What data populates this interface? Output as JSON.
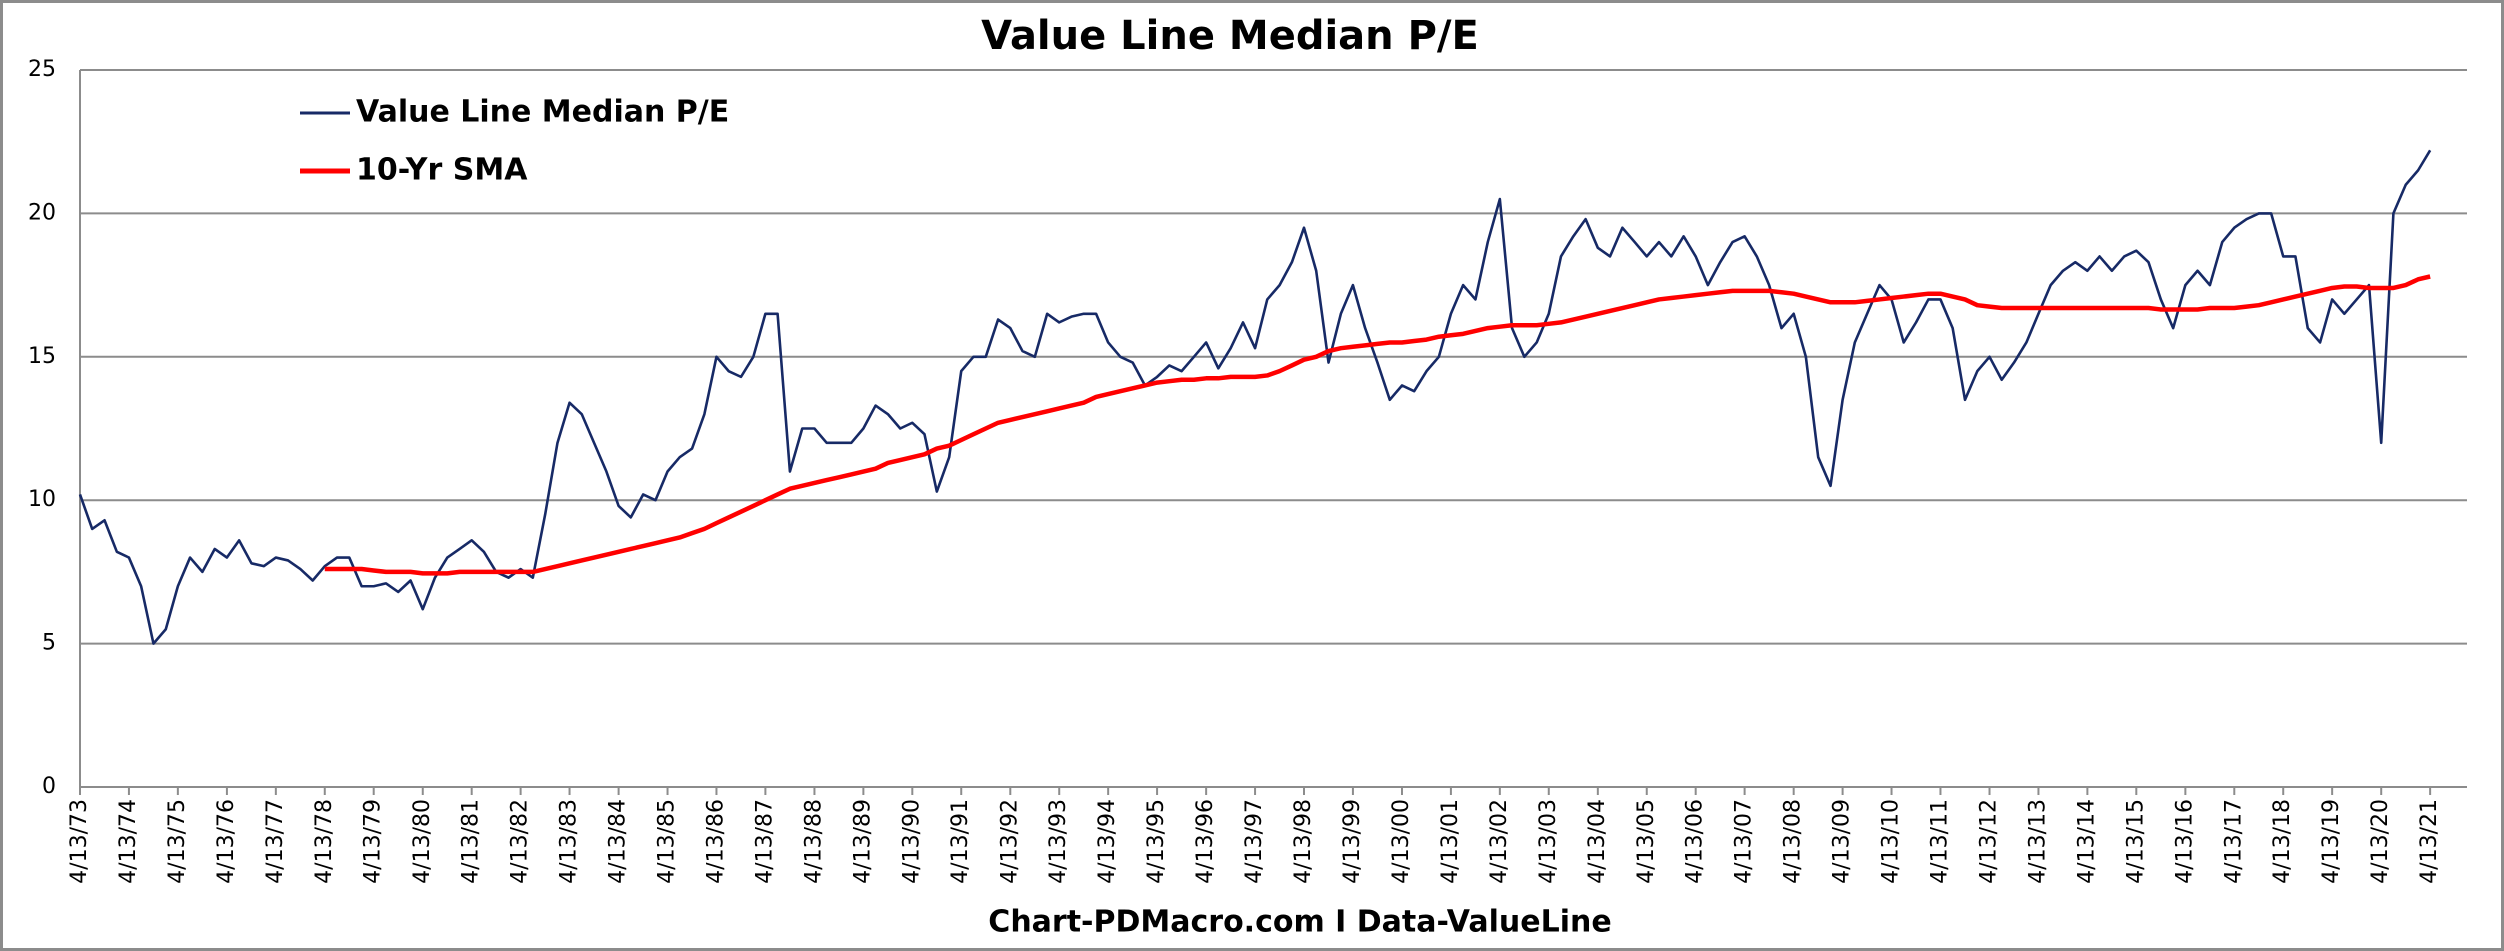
{
  "chart_data": {
    "type": "line",
    "title": "Value Line Median P/E",
    "x_label": "Chart-PDMacro.com I Data-ValueLine",
    "x": [
      "4/13/73",
      "7/13/73",
      "10/13/73",
      "1/13/74",
      "4/13/74",
      "7/13/74",
      "10/13/74",
      "1/13/75",
      "4/13/75",
      "7/13/75",
      "10/13/75",
      "1/13/76",
      "4/13/76",
      "7/13/76",
      "10/13/76",
      "1/13/77",
      "4/13/77",
      "7/13/77",
      "10/13/77",
      "1/13/78",
      "4/13/78",
      "7/13/78",
      "10/13/78",
      "1/13/79",
      "4/13/79",
      "7/13/79",
      "10/13/79",
      "1/13/80",
      "4/13/80",
      "7/13/80",
      "10/13/80",
      "1/13/81",
      "4/13/81",
      "7/13/81",
      "10/13/81",
      "1/13/82",
      "4/13/82",
      "7/13/82",
      "10/13/82",
      "1/13/83",
      "4/13/83",
      "7/13/83",
      "10/13/83",
      "1/13/84",
      "4/13/84",
      "7/13/84",
      "10/13/84",
      "1/13/85",
      "4/13/85",
      "7/13/85",
      "10/13/85",
      "1/13/86",
      "4/13/86",
      "7/13/86",
      "10/13/86",
      "1/13/87",
      "4/13/87",
      "7/13/87",
      "10/13/87",
      "1/13/88",
      "4/13/88",
      "7/13/88",
      "10/13/88",
      "1/13/89",
      "4/13/89",
      "7/13/89",
      "10/13/89",
      "1/13/90",
      "4/13/90",
      "7/13/90",
      "10/13/90",
      "1/13/91",
      "4/13/91",
      "7/13/91",
      "10/13/91",
      "1/13/92",
      "4/13/92",
      "7/13/92",
      "10/13/92",
      "1/13/93",
      "4/13/93",
      "7/13/93",
      "10/13/93",
      "1/13/94",
      "4/13/94",
      "7/13/94",
      "10/13/94",
      "1/13/95",
      "4/13/95",
      "7/13/95",
      "10/13/95",
      "1/13/96",
      "4/13/96",
      "7/13/96",
      "10/13/96",
      "1/13/97",
      "4/13/97",
      "7/13/97",
      "10/13/97",
      "1/13/98",
      "4/13/98",
      "7/13/98",
      "10/13/98",
      "1/13/99",
      "4/13/99",
      "7/13/99",
      "10/13/99",
      "1/13/00",
      "4/13/00",
      "7/13/00",
      "10/13/00",
      "1/13/01",
      "4/13/01",
      "7/13/01",
      "10/13/01",
      "1/13/02",
      "4/13/02",
      "7/13/02",
      "10/13/02",
      "1/13/03",
      "4/13/03",
      "7/13/03",
      "10/13/03",
      "1/13/04",
      "4/13/04",
      "7/13/04",
      "10/13/04",
      "1/13/05",
      "4/13/05",
      "7/13/05",
      "10/13/05",
      "1/13/06",
      "4/13/06",
      "7/13/06",
      "10/13/06",
      "1/13/07",
      "4/13/07",
      "7/13/07",
      "10/13/07",
      "1/13/08",
      "4/13/08",
      "7/13/08",
      "10/13/08",
      "1/13/09",
      "4/13/09",
      "7/13/09",
      "10/13/09",
      "1/13/10",
      "4/13/10",
      "7/13/10",
      "10/13/10",
      "1/13/11",
      "4/13/11",
      "7/13/11",
      "10/13/11",
      "1/13/12",
      "4/13/12",
      "7/13/12",
      "10/13/12",
      "1/13/13",
      "4/13/13",
      "7/13/13",
      "10/13/13",
      "1/13/14",
      "4/13/14",
      "7/13/14",
      "10/13/14",
      "1/13/15",
      "4/13/15",
      "7/13/15",
      "10/13/15",
      "1/13/16",
      "4/13/16",
      "7/13/16",
      "10/13/16",
      "1/13/17",
      "4/13/17",
      "7/13/17",
      "10/13/17",
      "1/13/18",
      "4/13/18",
      "7/13/18",
      "10/13/18",
      "1/13/19",
      "4/13/19",
      "7/13/19",
      "10/13/19",
      "1/13/20",
      "4/13/20",
      "7/13/20",
      "10/13/20",
      "1/13/21",
      "4/13/21"
    ],
    "series": [
      {
        "name": "Value Line Median P/E",
        "color": "#172a66",
        "values": [
          10.2,
          9.0,
          9.3,
          8.2,
          8.0,
          7.0,
          5.0,
          5.5,
          7.0,
          8.0,
          7.5,
          8.3,
          8.0,
          8.6,
          7.8,
          7.7,
          8.0,
          7.9,
          7.6,
          7.2,
          7.7,
          8.0,
          8.0,
          7.0,
          7.0,
          7.1,
          6.8,
          7.2,
          6.2,
          7.3,
          8.0,
          8.3,
          8.6,
          8.2,
          7.5,
          7.3,
          7.6,
          7.3,
          9.5,
          12.0,
          13.4,
          13.0,
          12.0,
          11.0,
          9.8,
          9.4,
          10.2,
          10.0,
          11.0,
          11.5,
          11.8,
          13.0,
          15.0,
          14.5,
          14.3,
          15.0,
          16.5,
          16.5,
          11.0,
          12.5,
          12.5,
          12.0,
          12.0,
          12.0,
          12.5,
          13.3,
          13.0,
          12.5,
          12.7,
          12.3,
          10.3,
          11.5,
          14.5,
          15.0,
          15.0,
          16.3,
          16.0,
          15.2,
          15.0,
          16.5,
          16.2,
          16.4,
          16.5,
          16.5,
          15.5,
          15.0,
          14.8,
          14.0,
          14.3,
          14.7,
          14.5,
          15.0,
          15.5,
          14.6,
          15.3,
          16.2,
          15.3,
          17.0,
          17.5,
          18.3,
          19.5,
          18.0,
          14.8,
          16.5,
          17.5,
          16.0,
          14.8,
          13.5,
          14.0,
          13.8,
          14.5,
          15.0,
          16.5,
          17.5,
          17.0,
          19.0,
          20.5,
          16.0,
          15.0,
          15.5,
          16.5,
          18.5,
          19.2,
          19.8,
          18.8,
          18.5,
          19.5,
          19.0,
          18.5,
          19.0,
          18.5,
          19.2,
          18.5,
          17.5,
          18.3,
          19.0,
          19.2,
          18.5,
          17.5,
          16.0,
          16.5,
          15.0,
          11.5,
          10.5,
          13.5,
          15.5,
          16.5,
          17.5,
          17.0,
          15.5,
          16.2,
          17.0,
          17.0,
          16.0,
          13.5,
          14.5,
          15.0,
          14.2,
          14.8,
          15.5,
          16.5,
          17.5,
          18.0,
          18.3,
          18.0,
          18.5,
          18.0,
          18.5,
          18.7,
          18.3,
          17.0,
          16.0,
          17.5,
          18.0,
          17.5,
          19.0,
          19.5,
          19.8,
          20.0,
          20.0,
          18.5,
          18.5,
          16.0,
          15.5,
          17.0,
          16.5,
          17.0,
          17.5,
          12.0,
          20.0,
          21.0,
          21.5,
          22.2
        ]
      },
      {
        "name": "10-Yr SMA",
        "color": "#ff0000",
        "values": [
          null,
          null,
          null,
          null,
          null,
          null,
          null,
          null,
          null,
          null,
          null,
          null,
          null,
          null,
          null,
          null,
          null,
          null,
          null,
          null,
          7.6,
          7.6,
          7.6,
          7.6,
          7.55,
          7.5,
          7.5,
          7.5,
          7.45,
          7.45,
          7.45,
          7.5,
          7.5,
          7.5,
          7.5,
          7.5,
          7.5,
          7.5,
          7.6,
          7.7,
          7.8,
          7.9,
          8.0,
          8.1,
          8.2,
          8.3,
          8.4,
          8.5,
          8.6,
          8.7,
          8.85,
          9.0,
          9.2,
          9.4,
          9.6,
          9.8,
          10.0,
          10.2,
          10.4,
          10.5,
          10.6,
          10.7,
          10.8,
          10.9,
          11.0,
          11.1,
          11.3,
          11.4,
          11.5,
          11.6,
          11.8,
          11.9,
          12.1,
          12.3,
          12.5,
          12.7,
          12.8,
          12.9,
          13.0,
          13.1,
          13.2,
          13.3,
          13.4,
          13.6,
          13.7,
          13.8,
          13.9,
          14.0,
          14.1,
          14.15,
          14.2,
          14.2,
          14.25,
          14.25,
          14.3,
          14.3,
          14.3,
          14.35,
          14.5,
          14.7,
          14.9,
          15.0,
          15.2,
          15.3,
          15.35,
          15.4,
          15.45,
          15.5,
          15.5,
          15.55,
          15.6,
          15.7,
          15.75,
          15.8,
          15.9,
          16.0,
          16.05,
          16.1,
          16.1,
          16.1,
          16.15,
          16.2,
          16.3,
          16.4,
          16.5,
          16.6,
          16.7,
          16.8,
          16.9,
          17.0,
          17.05,
          17.1,
          17.15,
          17.2,
          17.25,
          17.3,
          17.3,
          17.3,
          17.3,
          17.25,
          17.2,
          17.1,
          17.0,
          16.9,
          16.9,
          16.9,
          16.95,
          17.0,
          17.05,
          17.1,
          17.15,
          17.2,
          17.2,
          17.1,
          17.0,
          16.8,
          16.75,
          16.7,
          16.7,
          16.7,
          16.7,
          16.7,
          16.7,
          16.7,
          16.7,
          16.7,
          16.7,
          16.7,
          16.7,
          16.7,
          16.65,
          16.65,
          16.65,
          16.65,
          16.7,
          16.7,
          16.7,
          16.75,
          16.8,
          16.9,
          17.0,
          17.1,
          17.2,
          17.3,
          17.4,
          17.45,
          17.45,
          17.4,
          17.4,
          17.4,
          17.5,
          17.7,
          17.8
        ]
      }
    ],
    "xlim": [
      "4/13/73",
      "1/13/22"
    ],
    "xticks": [
      "4/13/73",
      "4/13/74",
      "4/13/75",
      "4/13/76",
      "4/13/77",
      "4/13/78",
      "4/13/79",
      "4/13/80",
      "4/13/81",
      "4/13/82",
      "4/13/83",
      "4/13/84",
      "4/13/85",
      "4/13/86",
      "4/13/87",
      "4/13/88",
      "4/13/89",
      "4/13/90",
      "4/13/91",
      "4/13/92",
      "4/13/93",
      "4/13/94",
      "4/13/95",
      "4/13/96",
      "4/13/97",
      "4/13/98",
      "4/13/99",
      "4/13/00",
      "4/13/01",
      "4/13/02",
      "4/13/03",
      "4/13/04",
      "4/13/05",
      "4/13/06",
      "4/13/07",
      "4/13/08",
      "4/13/09",
      "4/13/10",
      "4/13/11",
      "4/13/12",
      "4/13/13",
      "4/13/14",
      "4/13/15",
      "4/13/16",
      "4/13/17",
      "4/13/18",
      "4/13/19",
      "4/13/20",
      "4/13/21"
    ],
    "ylim": [
      0,
      25
    ],
    "yticks": [
      0,
      5,
      10,
      15,
      20,
      25
    ],
    "grid": true,
    "legend": "upper left"
  }
}
